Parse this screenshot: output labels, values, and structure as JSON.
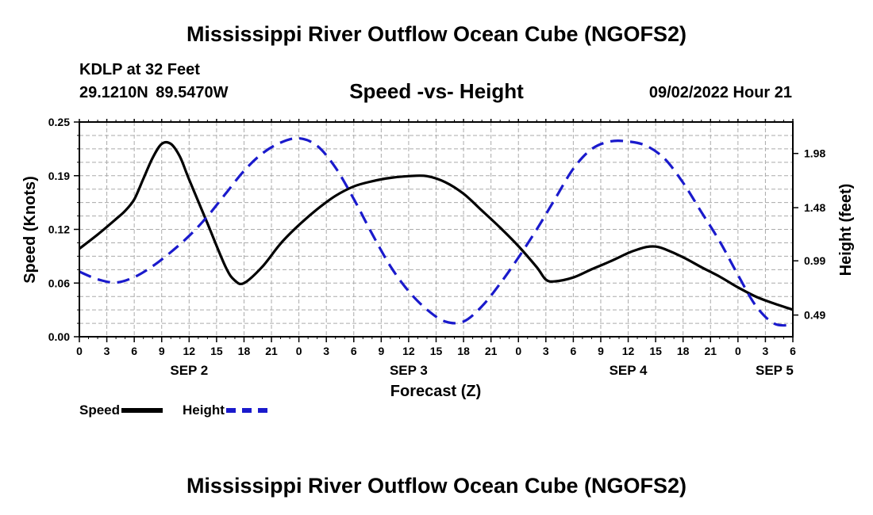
{
  "header": {
    "title": "Mississippi River Outflow Ocean Cube (NGOFS2)",
    "station": "KDLP at 32 Feet",
    "coords": "29.1210N  89.5470W",
    "subtitle": "Speed -vs- Height",
    "datetime": "09/02/2022 Hour 21"
  },
  "footer": {
    "title": "Mississippi River Outflow Ocean Cube (NGOFS2)"
  },
  "legend": {
    "speed": "Speed",
    "height": "Height"
  },
  "colors": {
    "speed": "#000000",
    "height": "#1a1acc",
    "grid": "#aaaaaa"
  },
  "chart_data": {
    "type": "line",
    "title": "Speed -vs- Height",
    "xlabel": "Forecast (Z)",
    "ylabel_left": "Speed (Knots)",
    "ylabel_right": "Height (feet)",
    "x_unit": "hours from 09/02 00Z",
    "xlim": [
      0,
      78
    ],
    "ylim_left": [
      0,
      0.25
    ],
    "ylim_right": [
      0.29,
      2.27
    ],
    "grid": true,
    "x_ticks": [
      {
        "hour": 0,
        "label": "0"
      },
      {
        "hour": 3,
        "label": "3"
      },
      {
        "hour": 6,
        "label": "6"
      },
      {
        "hour": 9,
        "label": "9"
      },
      {
        "hour": 12,
        "label": "12"
      },
      {
        "hour": 15,
        "label": "15"
      },
      {
        "hour": 18,
        "label": "18"
      },
      {
        "hour": 21,
        "label": "21"
      },
      {
        "hour": 24,
        "label": "0"
      },
      {
        "hour": 27,
        "label": "3"
      },
      {
        "hour": 30,
        "label": "6"
      },
      {
        "hour": 33,
        "label": "9"
      },
      {
        "hour": 36,
        "label": "12"
      },
      {
        "hour": 39,
        "label": "15"
      },
      {
        "hour": 42,
        "label": "18"
      },
      {
        "hour": 45,
        "label": "21"
      },
      {
        "hour": 48,
        "label": "0"
      },
      {
        "hour": 51,
        "label": "3"
      },
      {
        "hour": 54,
        "label": "6"
      },
      {
        "hour": 57,
        "label": "9"
      },
      {
        "hour": 60,
        "label": "12"
      },
      {
        "hour": 63,
        "label": "15"
      },
      {
        "hour": 66,
        "label": "18"
      },
      {
        "hour": 69,
        "label": "21"
      },
      {
        "hour": 72,
        "label": "0"
      },
      {
        "hour": 75,
        "label": "3"
      },
      {
        "hour": 78,
        "label": "6"
      }
    ],
    "day_labels": [
      {
        "hour": 12,
        "label": "SEP 2"
      },
      {
        "hour": 36,
        "label": "SEP 3"
      },
      {
        "hour": 60,
        "label": "SEP 4"
      },
      {
        "hour": 76,
        "label": "SEP 5"
      }
    ],
    "y_left_ticks": [
      "0.00",
      "0.06",
      "0.12",
      "0.19",
      "0.25"
    ],
    "y_left_tick_values": [
      0,
      0.0625,
      0.125,
      0.1875,
      0.25
    ],
    "y_right_ticks": [
      "0.49",
      "0.99",
      "1.48",
      "1.98"
    ],
    "y_right_tick_values": [
      0.49,
      0.99,
      1.48,
      1.98
    ],
    "series": [
      {
        "name": "Speed",
        "axis": "left",
        "style": "solid",
        "x": [
          0,
          2,
          4,
          5,
          6,
          7,
          8,
          9,
          10,
          11,
          12,
          14,
          16,
          17,
          18,
          20,
          22,
          24,
          26,
          28,
          30,
          32,
          34,
          36,
          38,
          40,
          42,
          44,
          46,
          48,
          50,
          51,
          52,
          54,
          56,
          58,
          60,
          61,
          62,
          63,
          64,
          66,
          68,
          70,
          72,
          74,
          76,
          78
        ],
        "values": [
          0.1025,
          0.119,
          0.137,
          0.1465,
          0.16,
          0.184,
          0.208,
          0.2245,
          0.2245,
          0.2095,
          0.183,
          0.132,
          0.081,
          0.0655,
          0.0625,
          0.0815,
          0.1085,
          0.13,
          0.1485,
          0.164,
          0.175,
          0.181,
          0.185,
          0.187,
          0.187,
          0.18,
          0.1665,
          0.147,
          0.127,
          0.1055,
          0.081,
          0.0665,
          0.0645,
          0.069,
          0.0785,
          0.0875,
          0.0975,
          0.1015,
          0.1045,
          0.105,
          0.102,
          0.0925,
          0.081,
          0.07,
          0.0575,
          0.0465,
          0.0385,
          0.0315
        ]
      },
      {
        "name": "Height",
        "axis": "right",
        "style": "dashed",
        "x": [
          0,
          2,
          4,
          6,
          8,
          10,
          12,
          14,
          16,
          18,
          20,
          22,
          24,
          26,
          28,
          30,
          32,
          34,
          36,
          38,
          40,
          42,
          44,
          46,
          48,
          50,
          52,
          54,
          56,
          58,
          60,
          62,
          64,
          66,
          68,
          70,
          72,
          74,
          76,
          78
        ],
        "values": [
          0.89,
          0.82,
          0.79,
          0.84,
          0.94,
          1.07,
          1.22,
          1.4,
          1.61,
          1.82,
          1.98,
          2.08,
          2.12,
          2.05,
          1.85,
          1.56,
          1.24,
          0.94,
          0.71,
          0.54,
          0.43,
          0.43,
          0.57,
          0.78,
          1.02,
          1.28,
          1.56,
          1.84,
          2.02,
          2.09,
          2.09,
          2.05,
          1.93,
          1.71,
          1.44,
          1.17,
          0.86,
          0.57,
          0.41,
          0.4
        ]
      }
    ]
  }
}
